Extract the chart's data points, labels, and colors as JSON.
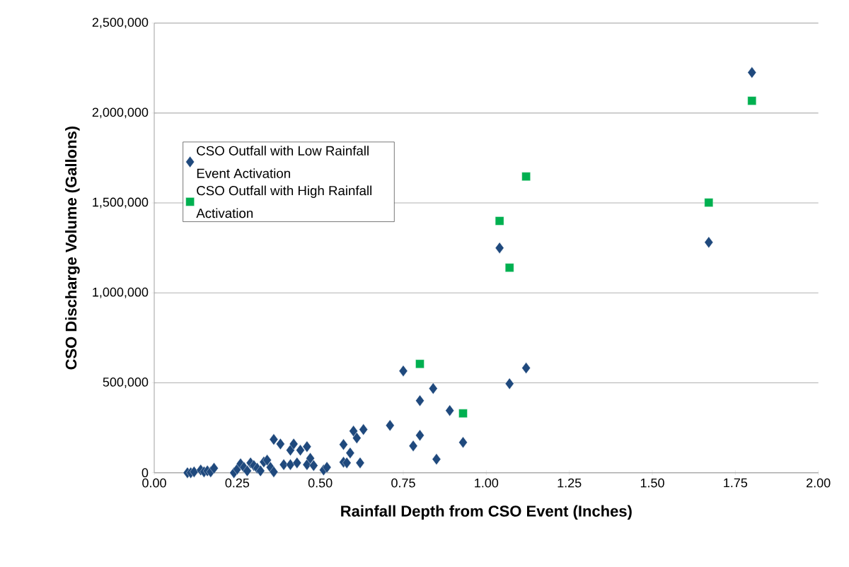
{
  "chart_data": {
    "type": "scatter",
    "xlabel": "Rainfall Depth from CSO Event (Inches)",
    "ylabel": "CSO Discharge Volume (Gallons)",
    "xlim": [
      0,
      2
    ],
    "xticks": [
      {
        "value": 0,
        "label": "0.00"
      },
      {
        "value": 0.25,
        "label": "0.25"
      },
      {
        "value": 0.5,
        "label": "0.50"
      },
      {
        "value": 0.75,
        "label": "0.75"
      },
      {
        "value": 1,
        "label": "1.00"
      },
      {
        "value": 1.25,
        "label": "1.25"
      },
      {
        "value": 1.5,
        "label": "1.50"
      },
      {
        "value": 1.75,
        "label": "1.75"
      },
      {
        "value": 2,
        "label": "2.00"
      }
    ],
    "ylim": [
      0,
      2500000
    ],
    "yticks": [
      {
        "value": 0,
        "label": "0"
      },
      {
        "value": 500000,
        "label": "500,000"
      },
      {
        "value": 1000000,
        "label": "1,000,000"
      },
      {
        "value": 1500000,
        "label": "1,500,000"
      },
      {
        "value": 2000000,
        "label": "2,000,000"
      },
      {
        "value": 2500000,
        "label": "2,500,000"
      }
    ],
    "grid": "y",
    "legend": "top left",
    "series": [
      {
        "name": "CSO Outfall with Low Rainfall Event Activation",
        "color": "#1f497d",
        "marker": "diamond",
        "x": [
          0.1,
          0.11,
          0.12,
          0.14,
          0.15,
          0.16,
          0.17,
          0.18,
          0.24,
          0.25,
          0.26,
          0.27,
          0.28,
          0.29,
          0.3,
          0.31,
          0.32,
          0.33,
          0.34,
          0.35,
          0.36,
          0.36,
          0.38,
          0.39,
          0.41,
          0.41,
          0.42,
          0.43,
          0.44,
          0.46,
          0.46,
          0.47,
          0.48,
          0.51,
          0.52,
          0.57,
          0.59,
          0.57,
          0.58,
          0.62,
          0.6,
          0.61,
          0.63,
          0.71,
          0.75,
          0.8,
          0.84,
          0.89,
          0.8,
          0.78,
          0.85,
          0.93,
          1.07,
          1.12,
          1.04,
          1.67,
          1.8
        ],
        "values": [
          0,
          0,
          5000,
          15000,
          5000,
          10000,
          5000,
          25000,
          0,
          20000,
          50000,
          30000,
          10000,
          55000,
          40000,
          25000,
          10000,
          60000,
          70000,
          30000,
          5000,
          185000,
          160000,
          45000,
          125000,
          45000,
          160000,
          55000,
          125000,
          145000,
          45000,
          80000,
          40000,
          15000,
          30000,
          157000,
          110000,
          59000,
          55000,
          55000,
          232000,
          193000,
          240000,
          263000,
          566000,
          401000,
          468000,
          346000,
          208000,
          149000,
          75000,
          169000,
          495000,
          582000,
          1250000,
          1281000,
          2225000
        ]
      },
      {
        "name": "CSO Outfall with High Rainfall Activation",
        "color": "#00b050",
        "marker": "square",
        "x": [
          0.8,
          0.93,
          1.04,
          1.07,
          1.12,
          1.67,
          1.8
        ],
        "values": [
          605000,
          330000,
          1400000,
          1140000,
          1647000,
          1502000,
          2068000
        ]
      }
    ]
  }
}
